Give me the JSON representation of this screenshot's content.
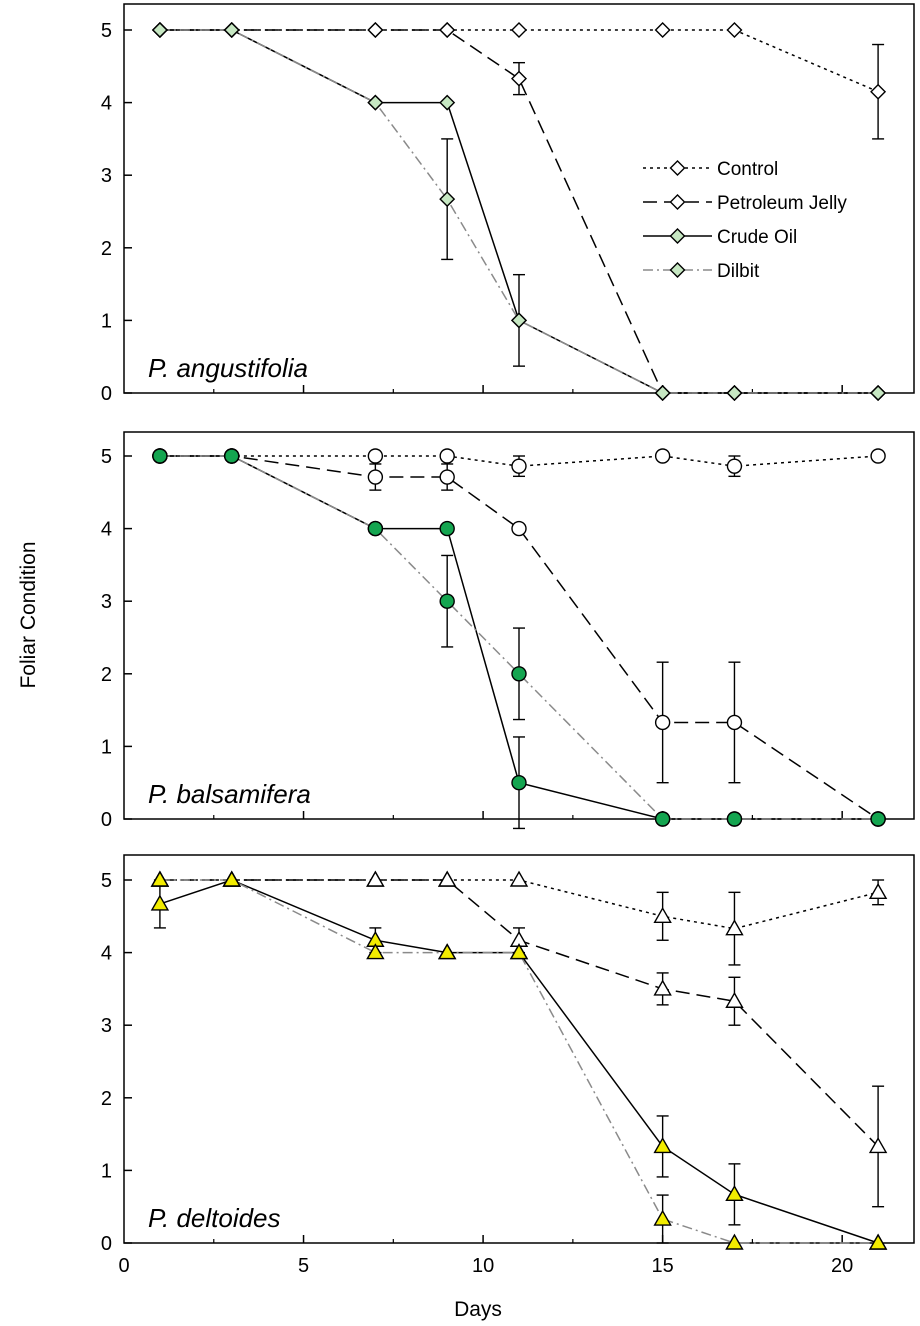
{
  "chart_data": {
    "type": "line",
    "xlabel": "Days",
    "ylabel": "Foliar Condition",
    "xlim": [
      0,
      22
    ],
    "ylim": [
      0,
      5.5
    ],
    "x_ticks": [
      "0",
      "5",
      "10",
      "15",
      "20"
    ],
    "y_ticks": [
      "0",
      "1",
      "2",
      "3",
      "4",
      "5"
    ],
    "grid": false,
    "legend": {
      "placement": "top-right of first panel",
      "entries": [
        "Control",
        "Petroleum Jelly",
        "Crude Oil",
        "Dilbit"
      ]
    },
    "series_styles": [
      {
        "name": "Control",
        "dash": "dotted",
        "filled": false
      },
      {
        "name": "Petroleum Jelly",
        "dash": "dashed",
        "filled": false
      },
      {
        "name": "Crude Oil",
        "dash": "solid",
        "filled": true
      },
      {
        "name": "Dilbit",
        "dash": "dash-dot",
        "filled": true
      }
    ],
    "panels": [
      {
        "label": "P. angustifolia",
        "marker": "diamond",
        "fill_color": "#c6e7c2",
        "series": [
          {
            "name": "Control",
            "x": [
              1,
              3,
              7,
              9,
              11,
              15,
              17,
              21
            ],
            "y": [
              5,
              5,
              5,
              5,
              5,
              5,
              5,
              4.15
            ],
            "err": [
              0,
              0,
              0,
              0,
              0,
              0,
              0,
              0.65
            ]
          },
          {
            "name": "Petroleum Jelly",
            "x": [
              1,
              3,
              7,
              9,
              11,
              15,
              17,
              21
            ],
            "y": [
              5,
              5,
              5,
              5,
              4.33,
              0,
              0,
              0
            ],
            "err": [
              0,
              0,
              0,
              0,
              0.22,
              0,
              0,
              0
            ]
          },
          {
            "name": "Crude Oil",
            "x": [
              1,
              3,
              7,
              9,
              11,
              15,
              17,
              21
            ],
            "y": [
              5,
              5,
              4,
              4,
              1,
              0,
              0,
              0
            ],
            "err": [
              0,
              0,
              0,
              0,
              0.63,
              0,
              0,
              0
            ]
          },
          {
            "name": "Dilbit",
            "x": [
              1,
              3,
              7,
              9,
              11,
              15,
              17,
              21
            ],
            "y": [
              5,
              5,
              4,
              2.67,
              1,
              0,
              0,
              0
            ],
            "err": [
              0,
              0,
              0,
              0.83,
              0,
              0,
              0,
              0
            ]
          }
        ]
      },
      {
        "label": "P. balsamifera",
        "marker": "circle",
        "fill_color": "#14a550",
        "series": [
          {
            "name": "Control",
            "x": [
              1,
              3,
              7,
              9,
              11,
              15,
              17,
              21
            ],
            "y": [
              5,
              5,
              5,
              5,
              4.86,
              5,
              4.86,
              5
            ],
            "err": [
              0,
              0,
              0,
              0,
              0.14,
              0,
              0.14,
              0
            ]
          },
          {
            "name": "Petroleum Jelly",
            "x": [
              1,
              3,
              7,
              9,
              11,
              15,
              17,
              21
            ],
            "y": [
              5,
              5,
              4.71,
              4.71,
              4,
              1.33,
              1.33,
              0
            ],
            "err": [
              0,
              0,
              0.18,
              0.18,
              0,
              0.83,
              0.83,
              0
            ]
          },
          {
            "name": "Crude Oil",
            "x": [
              1,
              3,
              7,
              9,
              11,
              15,
              17,
              21
            ],
            "y": [
              5,
              5,
              4,
              4,
              0.5,
              0,
              0,
              0
            ],
            "err": [
              0,
              0,
              0,
              0,
              0.63,
              0,
              0,
              0
            ]
          },
          {
            "name": "Dilbit",
            "x": [
              1,
              3,
              7,
              9,
              11,
              15,
              17,
              21
            ],
            "y": [
              5,
              5,
              4,
              3,
              2,
              0,
              0,
              0
            ],
            "err": [
              0,
              0,
              0,
              0.63,
              0.63,
              0,
              0,
              0
            ]
          }
        ]
      },
      {
        "label": "P. deltoides",
        "marker": "triangle",
        "fill_color": "#f2ec00",
        "series": [
          {
            "name": "Control",
            "x": [
              1,
              3,
              7,
              9,
              11,
              15,
              17,
              21
            ],
            "y": [
              5,
              5,
              5,
              5,
              5,
              4.5,
              4.33,
              4.83
            ],
            "err": [
              0,
              0,
              0,
              0,
              0,
              0.33,
              0.5,
              0.17
            ]
          },
          {
            "name": "Petroleum Jelly",
            "x": [
              1,
              3,
              7,
              9,
              11,
              15,
              17,
              21
            ],
            "y": [
              5,
              5,
              5,
              5,
              4.17,
              3.5,
              3.33,
              1.33
            ],
            "err": [
              0,
              0,
              0,
              0,
              0.17,
              0.22,
              0.33,
              0.83
            ]
          },
          {
            "name": "Crude Oil",
            "x": [
              1,
              3,
              7,
              9,
              11,
              15,
              17,
              21
            ],
            "y": [
              4.67,
              5,
              4.17,
              4,
              4,
              1.33,
              0.67,
              0
            ],
            "err": [
              0.33,
              0,
              0.17,
              0,
              0,
              0.42,
              0.42,
              0
            ]
          },
          {
            "name": "Dilbit",
            "x": [
              1,
              3,
              7,
              9,
              11,
              15,
              17,
              21
            ],
            "y": [
              5,
              5,
              4,
              4,
              4,
              0.33,
              0,
              0
            ],
            "err": [
              0,
              0,
              0,
              0,
              0,
              0.33,
              0,
              0
            ]
          }
        ]
      }
    ]
  }
}
